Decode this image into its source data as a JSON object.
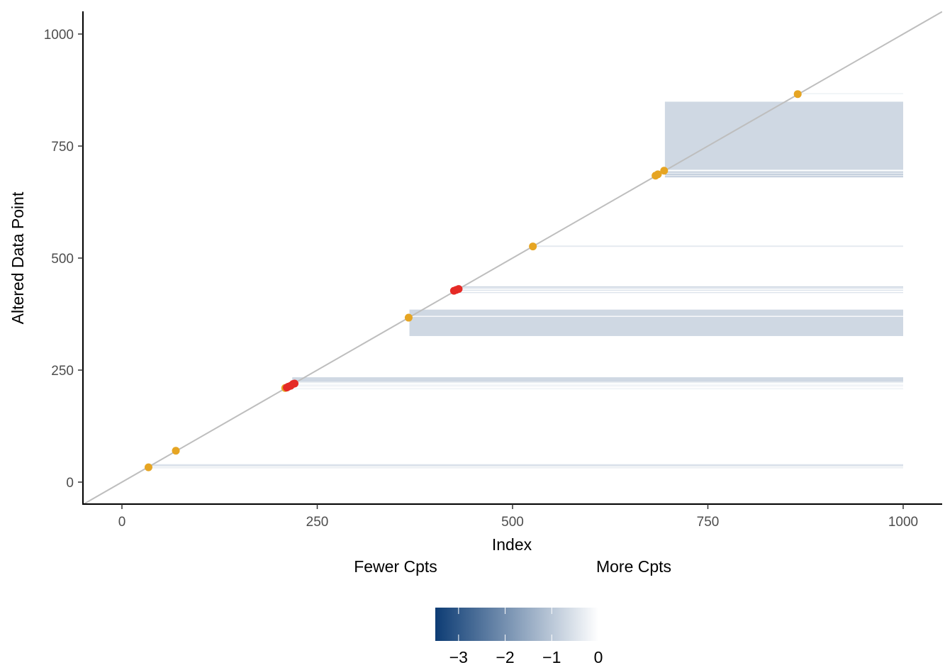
{
  "chart_data": {
    "type": "scatter",
    "title": "",
    "xlabel": "Index",
    "ylabel": "Altered Data Point",
    "xlim": [
      -50,
      1050
    ],
    "ylim": [
      -50,
      1050
    ],
    "x_ticks": [
      0,
      250,
      500,
      750,
      1000
    ],
    "y_ticks": [
      0,
      250,
      500,
      750,
      1000
    ],
    "x_tick_labels": [
      "0",
      "250",
      "500",
      "750",
      "1000"
    ],
    "y_tick_labels": [
      "0",
      "250",
      "500",
      "750",
      "1000"
    ],
    "grid": false,
    "reference_line": {
      "slope": 1,
      "intercept": 0,
      "color": "#bebebe"
    },
    "colors": {
      "orange": "#e6a523",
      "red": "#e52a26",
      "band": "#b3bcd0"
    },
    "orange_points": [
      {
        "x": 34,
        "y": 33
      },
      {
        "x": 69,
        "y": 70
      },
      {
        "x": 209,
        "y": 210
      },
      {
        "x": 367,
        "y": 367
      },
      {
        "x": 526,
        "y": 526
      },
      {
        "x": 683,
        "y": 684
      },
      {
        "x": 686,
        "y": 687
      },
      {
        "x": 694,
        "y": 695
      },
      {
        "x": 865,
        "y": 866
      }
    ],
    "red_points": [
      {
        "x": 211,
        "y": 211
      },
      {
        "x": 213,
        "y": 213
      },
      {
        "x": 216,
        "y": 215
      },
      {
        "x": 219,
        "y": 219
      },
      {
        "x": 221,
        "y": 220
      },
      {
        "x": 425,
        "y": 427
      },
      {
        "x": 428,
        "y": 429
      },
      {
        "x": 431,
        "y": 431
      }
    ],
    "bands": [
      {
        "x_start": 37,
        "x_end": 1000,
        "y_low": 31,
        "y_high": 33,
        "value": -0.4
      },
      {
        "x_start": 37,
        "x_end": 1000,
        "y_low": 35,
        "y_high": 40,
        "value": -0.5
      },
      {
        "x_start": 218,
        "x_end": 1000,
        "y_low": 207,
        "y_high": 210,
        "value": -0.2
      },
      {
        "x_start": 218,
        "x_end": 1000,
        "y_low": 213,
        "y_high": 218,
        "value": -0.2
      },
      {
        "x_start": 218,
        "x_end": 1000,
        "y_low": 221,
        "y_high": 224,
        "value": -0.3
      },
      {
        "x_start": 218,
        "x_end": 1000,
        "y_low": 224,
        "y_high": 234,
        "value": -0.7
      },
      {
        "x_start": 368,
        "x_end": 1000,
        "y_low": 326,
        "y_high": 369,
        "value": -0.7
      },
      {
        "x_start": 368,
        "x_end": 1000,
        "y_low": 371,
        "y_high": 385,
        "value": -0.7
      },
      {
        "x_start": 432,
        "x_end": 1000,
        "y_low": 422,
        "y_high": 424,
        "value": -0.5
      },
      {
        "x_start": 432,
        "x_end": 1000,
        "y_low": 427,
        "y_high": 429,
        "value": -0.5
      },
      {
        "x_start": 432,
        "x_end": 1000,
        "y_low": 431,
        "y_high": 433,
        "value": -0.5
      },
      {
        "x_start": 432,
        "x_end": 1000,
        "y_low": 434,
        "y_high": 437,
        "value": -0.7
      },
      {
        "x_start": 527,
        "x_end": 1000,
        "y_low": 525,
        "y_high": 528,
        "value": -0.4
      },
      {
        "x_start": 695,
        "x_end": 1000,
        "y_low": 680,
        "y_high": 684,
        "value": -0.8
      },
      {
        "x_start": 695,
        "x_end": 1000,
        "y_low": 685,
        "y_high": 688,
        "value": -0.9
      },
      {
        "x_start": 695,
        "x_end": 1000,
        "y_low": 689,
        "y_high": 694,
        "value": -0.7
      },
      {
        "x_start": 695,
        "x_end": 1000,
        "y_low": 697,
        "y_high": 849,
        "value": -0.7
      },
      {
        "x_start": 867,
        "x_end": 1000,
        "y_low": 866,
        "y_high": 868,
        "value": -0.3
      }
    ],
    "legend": {
      "placement": "bottom",
      "left_label": "Fewer Cpts",
      "right_label": "More Cpts",
      "scale": "colorbar",
      "range": [
        -3.5,
        0
      ],
      "low_color": "#0d3c74",
      "high_color": "#ffffff",
      "ticks": [
        -3,
        -2,
        -1,
        0
      ],
      "tick_labels": [
        "−3",
        "−2",
        "−1",
        "0"
      ]
    }
  }
}
